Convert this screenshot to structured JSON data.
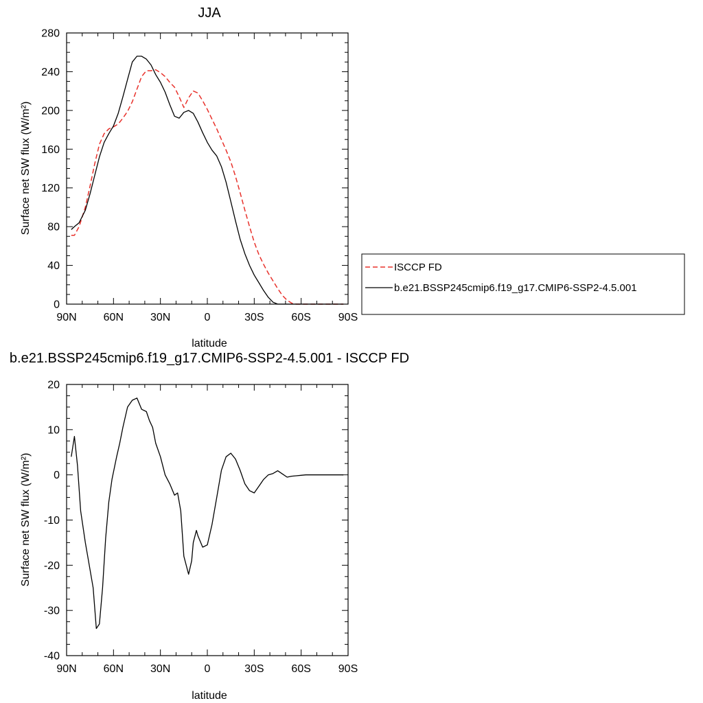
{
  "chart_data": [
    {
      "type": "line",
      "title": "JJA",
      "xlabel": "latitude",
      "ylabel": "Surface net SW flux (W/m²)",
      "ylim": [
        0,
        280
      ],
      "yticks": [
        0,
        40,
        80,
        120,
        160,
        200,
        240,
        280
      ],
      "ytick_labels": [
        "0",
        "40",
        "80",
        "120",
        "160",
        "200",
        "240",
        "280"
      ],
      "xlim": [
        90,
        -90
      ],
      "xticks": [
        90,
        60,
        30,
        0,
        -30,
        -60,
        -90
      ],
      "xtick_labels": [
        "90N",
        "60N",
        "30N",
        "0",
        "30S",
        "60S",
        "90S"
      ],
      "legend_position": "right",
      "series": [
        {
          "name": "ISCCP FD",
          "color": "#e8302a",
          "style": "dashed",
          "x": [
            87,
            85,
            82,
            78,
            75,
            72,
            69,
            66,
            63,
            60,
            57,
            54,
            51,
            48,
            45,
            42,
            39,
            36,
            33,
            30,
            27,
            24,
            21,
            18,
            15,
            12,
            9,
            6,
            3,
            0,
            -3,
            -6,
            -9,
            -12,
            -15,
            -18,
            -21,
            -24,
            -27,
            -30,
            -33,
            -36,
            -39,
            -42,
            -45,
            -48,
            -51,
            -54,
            -57,
            -60,
            -63,
            -66,
            -69,
            -72,
            -75,
            -78,
            -81,
            -84,
            -87
          ],
          "y": [
            71,
            71,
            80,
            100,
            122,
            145,
            165,
            176,
            181,
            183,
            186,
            192,
            199,
            209,
            222,
            235,
            241,
            241,
            242,
            239,
            235,
            229,
            224,
            214,
            203,
            213,
            220,
            218,
            210,
            201,
            191,
            181,
            170,
            159,
            147,
            132,
            115,
            97,
            80,
            64,
            51,
            41,
            32,
            24,
            16,
            9,
            4,
            1,
            0,
            0,
            0,
            0,
            0,
            0,
            0,
            0,
            0,
            0,
            0
          ]
        },
        {
          "name": "b.e21.BSSP245cmip6.f19_g17.CMIP6-SSP2-4.5.001",
          "color": "#000000",
          "style": "solid",
          "x": [
            87,
            85,
            82,
            78,
            75,
            72,
            69,
            66,
            63,
            60,
            57,
            54,
            51,
            48,
            45,
            42,
            39,
            36,
            33,
            30,
            27,
            24,
            21,
            18,
            15,
            12,
            9,
            6,
            3,
            0,
            -3,
            -6,
            -9,
            -12,
            -15,
            -18,
            -21,
            -24,
            -27,
            -30,
            -33,
            -36,
            -39,
            -42,
            -45,
            -48,
            -51,
            -54,
            -57,
            -60,
            -63,
            -66,
            -69,
            -72,
            -75,
            -78,
            -81,
            -84,
            -87
          ],
          "y": [
            77,
            80,
            84,
            97,
            114,
            133,
            152,
            167,
            176,
            184,
            197,
            214,
            232,
            250,
            256,
            256,
            253,
            247,
            237,
            229,
            219,
            206,
            194,
            192,
            198,
            200,
            197,
            188,
            177,
            167,
            159,
            153,
            142,
            126,
            106,
            86,
            67,
            52,
            40,
            30,
            22,
            14,
            7,
            2,
            0,
            0,
            0,
            0,
            0,
            0,
            0,
            0,
            0,
            0,
            0,
            0,
            0,
            0,
            0
          ]
        }
      ]
    },
    {
      "type": "line",
      "title": "b.e21.BSSP245cmip6.f19_g17.CMIP6-SSP2-4.5.001 - ISCCP FD",
      "xlabel": "latitude",
      "ylabel": "Surface net SW flux (W/m²)",
      "ylim": [
        -40,
        20
      ],
      "yticks": [
        -40,
        -30,
        -20,
        -10,
        0,
        10,
        20
      ],
      "ytick_labels": [
        "-40",
        "-30",
        "-20",
        "-10",
        "0",
        "10",
        "20"
      ],
      "xlim": [
        90,
        -90
      ],
      "xticks": [
        90,
        60,
        30,
        0,
        -30,
        -60,
        -90
      ],
      "xtick_labels": [
        "90N",
        "60N",
        "30N",
        "0",
        "30S",
        "60S",
        "90S"
      ],
      "series": [
        {
          "color": "#000000",
          "style": "solid",
          "x": [
            87,
            85,
            83,
            81,
            78,
            76,
            73,
            71,
            69,
            67,
            65,
            63,
            61,
            58,
            56,
            54,
            51,
            48,
            45,
            42,
            39,
            37,
            35,
            33,
            30,
            27,
            24,
            21,
            19,
            17,
            15,
            12,
            10,
            9,
            7,
            6,
            3,
            0,
            -3,
            -6,
            -9,
            -12,
            -15,
            -18,
            -21,
            -24,
            -27,
            -30,
            -33,
            -36,
            -39,
            -42,
            -45,
            -48,
            -51,
            -54,
            -57,
            -60,
            -63,
            -66,
            -69,
            -72,
            -75,
            -78,
            -81,
            -84,
            -87
          ],
          "y": [
            4,
            8.5,
            2,
            -8,
            -15,
            -19,
            -25,
            -34,
            -33,
            -25,
            -14,
            -6,
            -1,
            4,
            7,
            10.5,
            15,
            16.5,
            17,
            14.5,
            14,
            12,
            10.5,
            7,
            4,
            0,
            -2,
            -4.5,
            -4,
            -8,
            -18,
            -22,
            -19,
            -15,
            -12.3,
            -13.5,
            -16,
            -15.5,
            -11,
            -5,
            1,
            4,
            4.8,
            3.5,
            1,
            -2,
            -3.5,
            -4,
            -2.5,
            -1,
            0,
            0.3,
            0.9,
            0.2,
            -0.5,
            -0.3,
            -0.2,
            -0.1,
            0,
            0,
            0,
            0,
            0,
            0,
            0,
            0,
            0
          ]
        }
      ]
    }
  ]
}
